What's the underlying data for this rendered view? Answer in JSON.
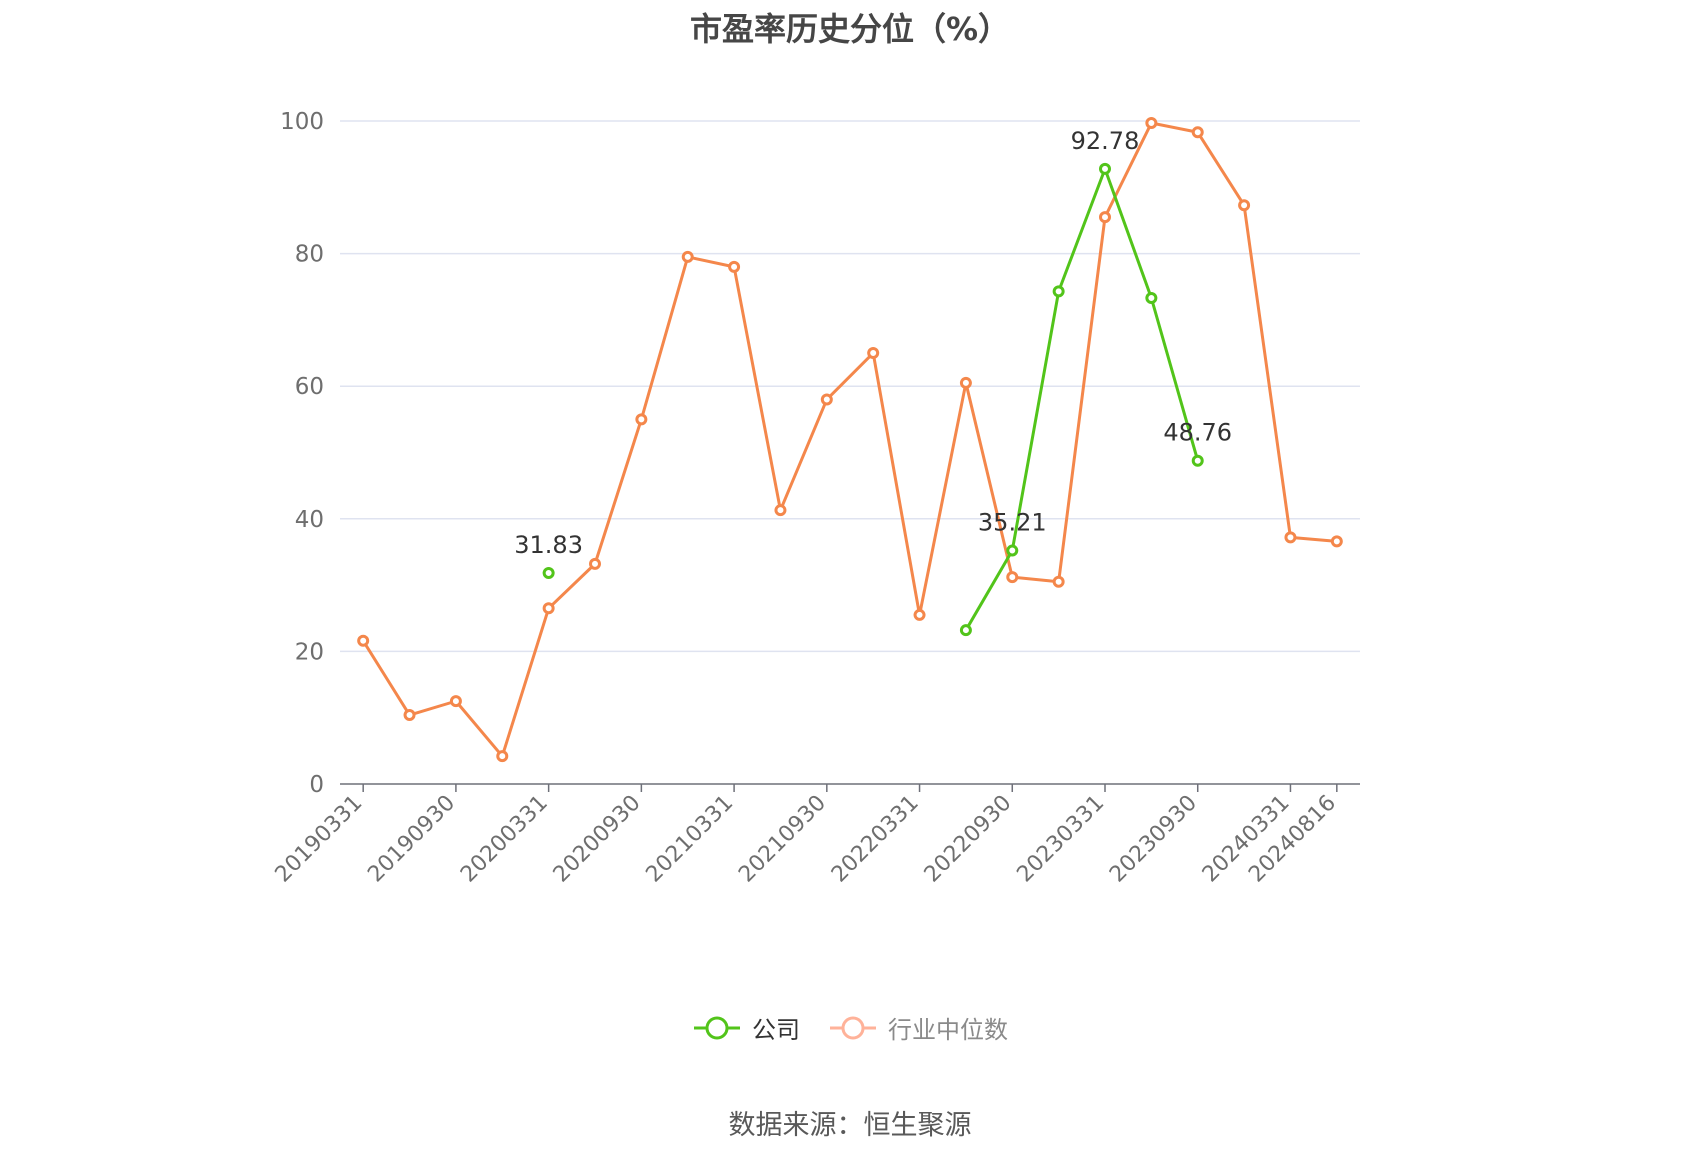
{
  "title": "市盈率历史分位（%）",
  "source": "数据来源：恒生聚源",
  "legend": [
    {
      "name": "公司",
      "color": "#52c41a",
      "active": true
    },
    {
      "name": "行业中位数",
      "color": "#ffb299",
      "active": false
    }
  ],
  "chart_data": {
    "type": "line",
    "ylim": [
      0,
      100
    ],
    "yticks": [
      0,
      20,
      40,
      60,
      80,
      100
    ],
    "grid": true,
    "legend_position": "bottom",
    "x": [
      "20190331",
      "20190630",
      "20190930",
      "20191231",
      "20200331",
      "20200630",
      "20200930",
      "20201231",
      "20210331",
      "20210630",
      "20210930",
      "20211231",
      "20220331",
      "20220630",
      "20220930",
      "20221231",
      "20230331",
      "20230630",
      "20230930",
      "20231231",
      "20240331",
      "20240816"
    ],
    "xtick_labels": [
      "20190331",
      "20190930",
      "20200331",
      "20200930",
      "20210331",
      "20210930",
      "20220331",
      "20220930",
      "20230331",
      "20230930",
      "20240331",
      "20240816"
    ],
    "series": [
      {
        "name": "公司",
        "color": "#52c41a",
        "values": [
          null,
          null,
          null,
          null,
          31.83,
          null,
          null,
          null,
          null,
          null,
          null,
          null,
          null,
          23.2,
          35.21,
          74.3,
          92.78,
          73.3,
          48.76,
          null,
          null,
          null
        ],
        "labels": {
          "4": "31.83",
          "14": "35.21",
          "16": "92.78",
          "18": "48.76"
        }
      },
      {
        "name": "行业中位数",
        "color": "#f4874b",
        "values": [
          21.6,
          10.4,
          12.5,
          4.2,
          26.5,
          33.2,
          55.0,
          79.5,
          78.0,
          41.3,
          58.0,
          65.0,
          25.5,
          60.5,
          31.2,
          30.5,
          85.5,
          99.7,
          98.3,
          87.3,
          37.2,
          36.6
        ]
      }
    ]
  }
}
